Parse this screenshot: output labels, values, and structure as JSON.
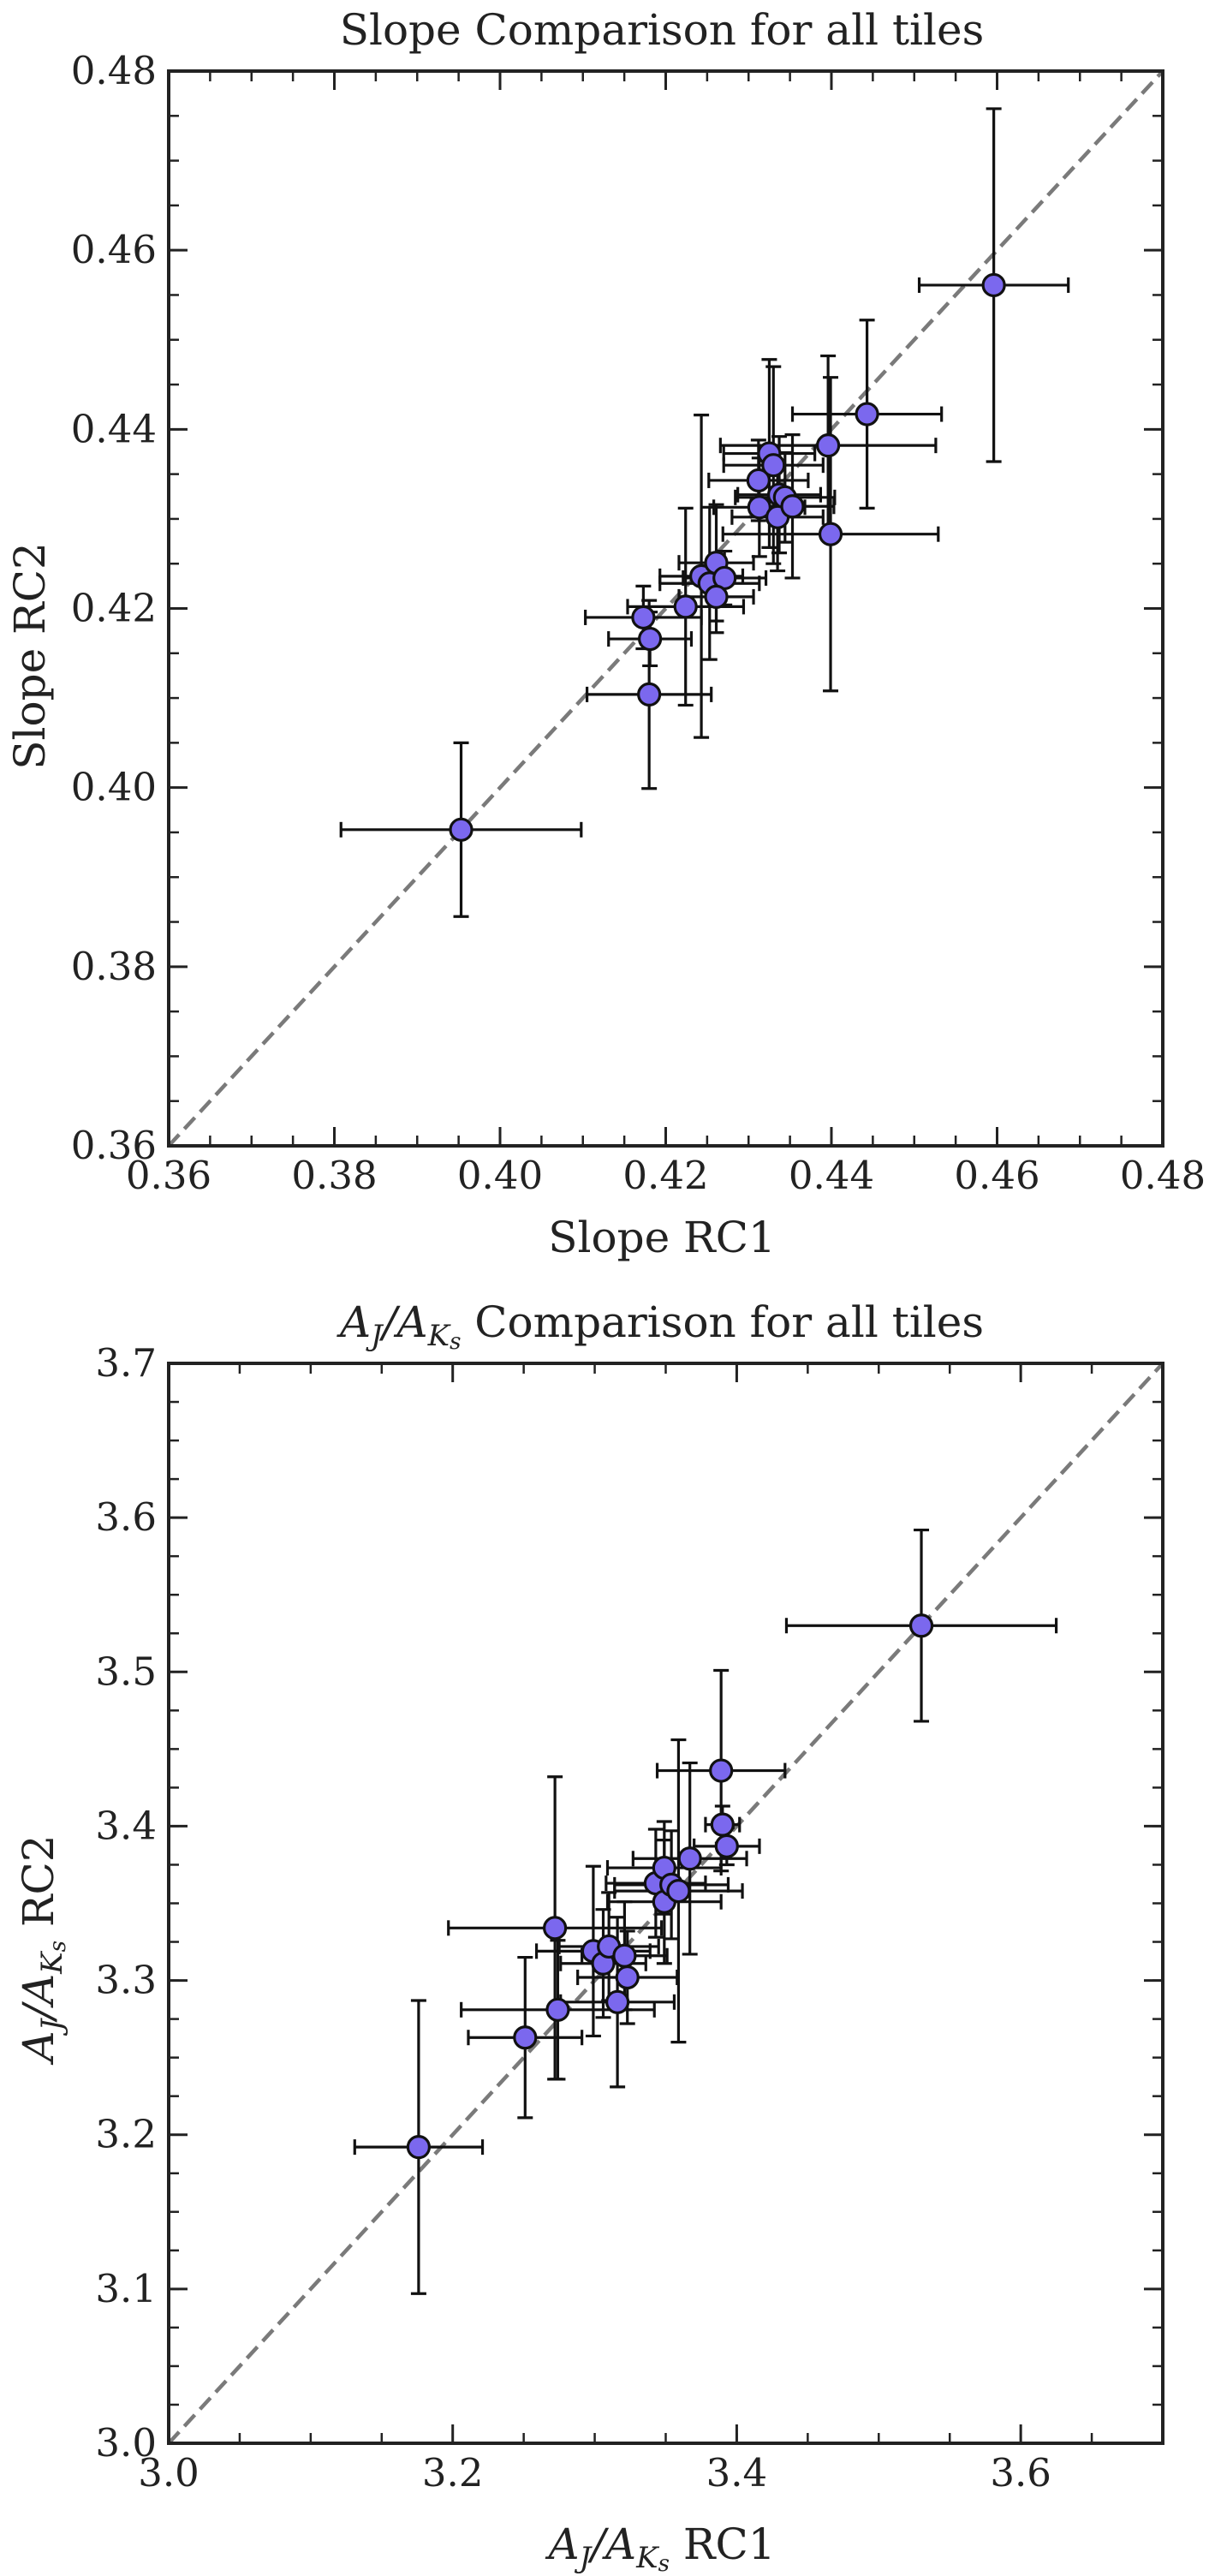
{
  "chart_data": [
    {
      "type": "scatter",
      "title": "Slope Comparison for all tiles",
      "xlabel": "Slope RC1",
      "ylabel": "Slope RC2",
      "xlim": [
        0.36,
        0.48
      ],
      "ylim": [
        0.36,
        0.48
      ],
      "xticks": [
        "0.36",
        "0.38",
        "0.40",
        "0.42",
        "0.44",
        "0.46",
        "0.48"
      ],
      "yticks": [
        "0.36",
        "0.38",
        "0.40",
        "0.42",
        "0.44",
        "0.46",
        "0.48"
      ],
      "reference_line": "y = x (dashed)",
      "marker_color": "#7B68EE",
      "points": [
        {
          "x": 0.3953,
          "y": 0.3953,
          "xerr": 0.0145,
          "yerr": 0.0097
        },
        {
          "x": 0.418,
          "y": 0.4104,
          "xerr": 0.0075,
          "yerr": 0.0105
        },
        {
          "x": 0.4173,
          "y": 0.419,
          "xerr": 0.007,
          "yerr": 0.0035
        },
        {
          "x": 0.4181,
          "y": 0.4166,
          "xerr": 0.005,
          "yerr": 0.003
        },
        {
          "x": 0.4224,
          "y": 0.4202,
          "xerr": 0.007,
          "yerr": 0.011
        },
        {
          "x": 0.4243,
          "y": 0.4236,
          "xerr": 0.005,
          "yerr": 0.018
        },
        {
          "x": 0.4253,
          "y": 0.4228,
          "xerr": 0.006,
          "yerr": 0.0085
        },
        {
          "x": 0.4261,
          "y": 0.4251,
          "xerr": 0.0045,
          "yerr": 0.0065
        },
        {
          "x": 0.4271,
          "y": 0.4234,
          "xerr": 0.005,
          "yerr": 0.003
        },
        {
          "x": 0.4261,
          "y": 0.4213,
          "xerr": 0.0045,
          "yerr": 0.004
        },
        {
          "x": 0.4312,
          "y": 0.4343,
          "xerr": 0.006,
          "yerr": 0.0045
        },
        {
          "x": 0.4325,
          "y": 0.4373,
          "xerr": 0.0055,
          "yerr": 0.0105
        },
        {
          "x": 0.433,
          "y": 0.436,
          "xerr": 0.006,
          "yerr": 0.011
        },
        {
          "x": 0.4337,
          "y": 0.4327,
          "xerr": 0.005,
          "yerr": 0.0065
        },
        {
          "x": 0.4344,
          "y": 0.4324,
          "xerr": 0.006,
          "yerr": 0.005
        },
        {
          "x": 0.4313,
          "y": 0.4313,
          "xerr": 0.0055,
          "yerr": 0.0055
        },
        {
          "x": 0.4335,
          "y": 0.4302,
          "xerr": 0.0055,
          "yerr": 0.006
        },
        {
          "x": 0.4353,
          "y": 0.4314,
          "xerr": 0.005,
          "yerr": 0.008
        },
        {
          "x": 0.4396,
          "y": 0.4382,
          "xerr": 0.013,
          "yerr": 0.01
        },
        {
          "x": 0.4399,
          "y": 0.4283,
          "xerr": 0.013,
          "yerr": 0.0175
        },
        {
          "x": 0.4443,
          "y": 0.4417,
          "xerr": 0.009,
          "yerr": 0.0105
        },
        {
          "x": 0.4596,
          "y": 0.4561,
          "xerr": 0.009,
          "yerr": 0.0197
        }
      ]
    },
    {
      "type": "scatter",
      "title": "A_J/A_Ks Comparison for all tiles",
      "title_parts": [
        "A",
        "J",
        "/A",
        "K",
        "s",
        " Comparison for all tiles"
      ],
      "xlabel": "A_J/A_Ks RC1",
      "xlabel_parts": [
        "A",
        "J",
        "/A",
        "K",
        "s",
        " RC1"
      ],
      "ylabel": "A_J/A_Ks RC2",
      "ylabel_parts": [
        "A",
        "J",
        "/A",
        "K",
        "s",
        " RC2"
      ],
      "xlim": [
        3.0,
        3.7
      ],
      "ylim": [
        3.0,
        3.7
      ],
      "xticks": [
        "3.0",
        "3.2",
        "3.4",
        "3.6"
      ],
      "yticks": [
        "3.0",
        "3.1",
        "3.2",
        "3.3",
        "3.4",
        "3.5",
        "3.6",
        "3.7"
      ],
      "reference_line": "y = x (dashed)",
      "marker_color": "#7B68EE",
      "points": [
        {
          "x": 3.176,
          "y": 3.192,
          "xerr": 0.045,
          "yerr": 0.095
        },
        {
          "x": 3.251,
          "y": 3.263,
          "xerr": 0.04,
          "yerr": 0.052
        },
        {
          "x": 3.272,
          "y": 3.334,
          "xerr": 0.075,
          "yerr": 0.098
        },
        {
          "x": 3.274,
          "y": 3.281,
          "xerr": 0.068,
          "yerr": 0.045
        },
        {
          "x": 3.299,
          "y": 3.319,
          "xerr": 0.04,
          "yerr": 0.055
        },
        {
          "x": 3.306,
          "y": 3.311,
          "xerr": 0.03,
          "yerr": 0.035
        },
        {
          "x": 3.31,
          "y": 3.322,
          "xerr": 0.035,
          "yerr": 0.035
        },
        {
          "x": 3.316,
          "y": 3.286,
          "xerr": 0.04,
          "yerr": 0.055
        },
        {
          "x": 3.321,
          "y": 3.316,
          "xerr": 0.03,
          "yerr": 0.035
        },
        {
          "x": 3.323,
          "y": 3.302,
          "xerr": 0.035,
          "yerr": 0.03
        },
        {
          "x": 3.343,
          "y": 3.363,
          "xerr": 0.035,
          "yerr": 0.035
        },
        {
          "x": 3.349,
          "y": 3.373,
          "xerr": 0.04,
          "yerr": 0.03
        },
        {
          "x": 3.349,
          "y": 3.351,
          "xerr": 0.04,
          "yerr": 0.04
        },
        {
          "x": 3.354,
          "y": 3.362,
          "xerr": 0.04,
          "yerr": 0.035
        },
        {
          "x": 3.359,
          "y": 3.358,
          "xerr": 0.045,
          "yerr": 0.098
        },
        {
          "x": 3.367,
          "y": 3.379,
          "xerr": 0.04,
          "yerr": 0.062
        },
        {
          "x": 3.389,
          "y": 3.436,
          "xerr": 0.045,
          "yerr": 0.065
        },
        {
          "x": 3.39,
          "y": 3.401,
          "xerr": 0.012,
          "yerr": 0.012
        },
        {
          "x": 3.393,
          "y": 3.387,
          "xerr": 0.023,
          "yerr": 0.012
        },
        {
          "x": 3.53,
          "y": 3.53,
          "xerr": 0.095,
          "yerr": 0.062
        }
      ]
    }
  ]
}
